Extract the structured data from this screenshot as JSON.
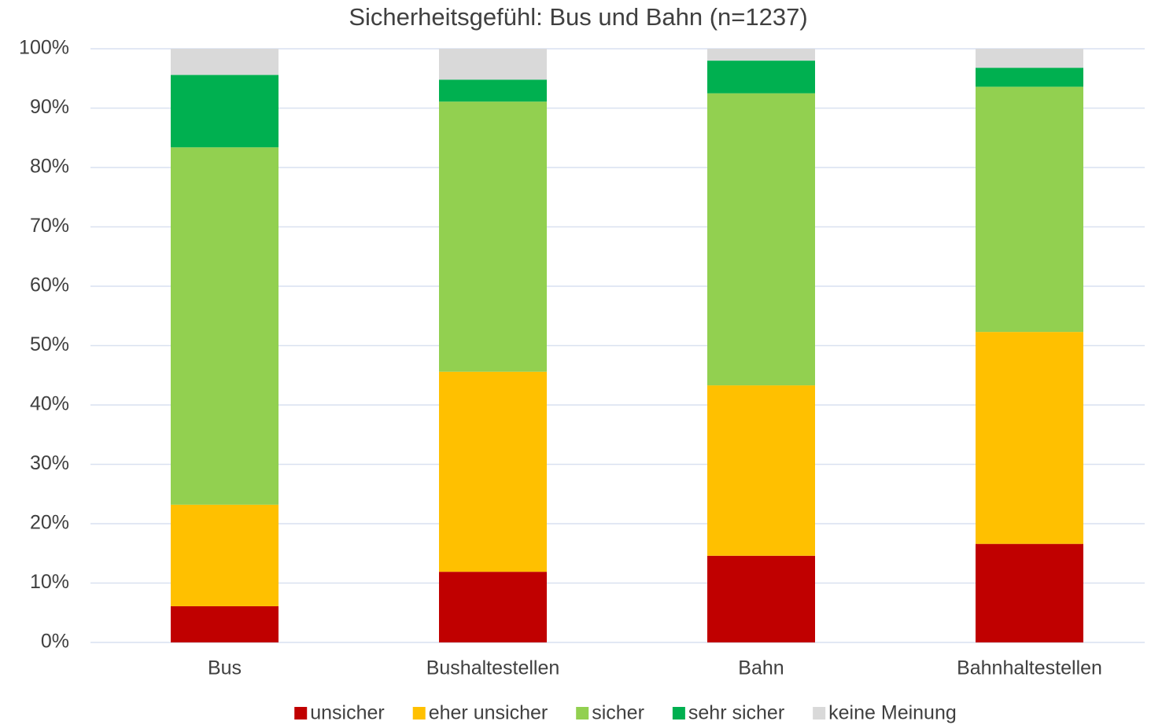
{
  "chart_data": {
    "type": "stacked_bar",
    "title": "Sicherheitsgefühl: Bus und Bahn (n=1237)",
    "categories": [
      "Bus",
      "Bushaltestellen",
      "Bahn",
      "Bahnhaltestellen"
    ],
    "series": [
      {
        "name": "unsicher",
        "color": "#c00000",
        "values": [
          6.1,
          11.9,
          14.6,
          16.6
        ]
      },
      {
        "name": "eher unsicher",
        "color": "#ffc000",
        "values": [
          17.1,
          33.7,
          28.7,
          35.7
        ]
      },
      {
        "name": "sicher",
        "color": "#92d050",
        "values": [
          60.2,
          45.5,
          49.2,
          41.3
        ]
      },
      {
        "name": "sehr sicher",
        "color": "#00b050",
        "values": [
          12.2,
          3.7,
          5.5,
          3.2
        ]
      },
      {
        "name": "keine Meinung",
        "color": "#d9d9d9",
        "values": [
          4.4,
          5.2,
          2.0,
          3.2
        ]
      }
    ],
    "ylim": [
      0,
      100
    ],
    "yticks": [
      {
        "value": 0,
        "label": "0%"
      },
      {
        "value": 10,
        "label": "10%"
      },
      {
        "value": 20,
        "label": "20%"
      },
      {
        "value": 30,
        "label": "30%"
      },
      {
        "value": 40,
        "label": "40%"
      },
      {
        "value": 50,
        "label": "50%"
      },
      {
        "value": 60,
        "label": "60%"
      },
      {
        "value": 70,
        "label": "70%"
      },
      {
        "value": 80,
        "label": "80%"
      },
      {
        "value": 90,
        "label": "90%"
      },
      {
        "value": 100,
        "label": "100%"
      }
    ],
    "grid": true,
    "legend": "bottom"
  }
}
